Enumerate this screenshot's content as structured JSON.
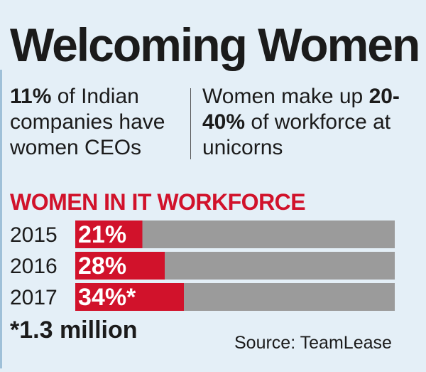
{
  "title": "Welcoming Women",
  "stat_left": {
    "highlight": "11%",
    "text": " of Indian companies have women CEOs"
  },
  "stat_right": {
    "text_before": "Women make up ",
    "highlight": "20-40%",
    "text_after": " of workforce at unicorns"
  },
  "footnote": "*1.3 million",
  "source": "Source: TeamLease",
  "colors": {
    "accent": "#d1122b",
    "bar_track": "#9b9b9b",
    "background": "#e4eff7"
  },
  "chart_data": {
    "type": "bar",
    "orientation": "horizontal",
    "title": "WOMEN IN IT WORKFORCE",
    "categories": [
      "2015",
      "2016",
      "2017"
    ],
    "values": [
      21,
      28,
      34
    ],
    "value_labels": [
      "21%",
      "28%",
      "34%*"
    ],
    "xlim": [
      0,
      100
    ],
    "unit": "%",
    "grid": false
  }
}
